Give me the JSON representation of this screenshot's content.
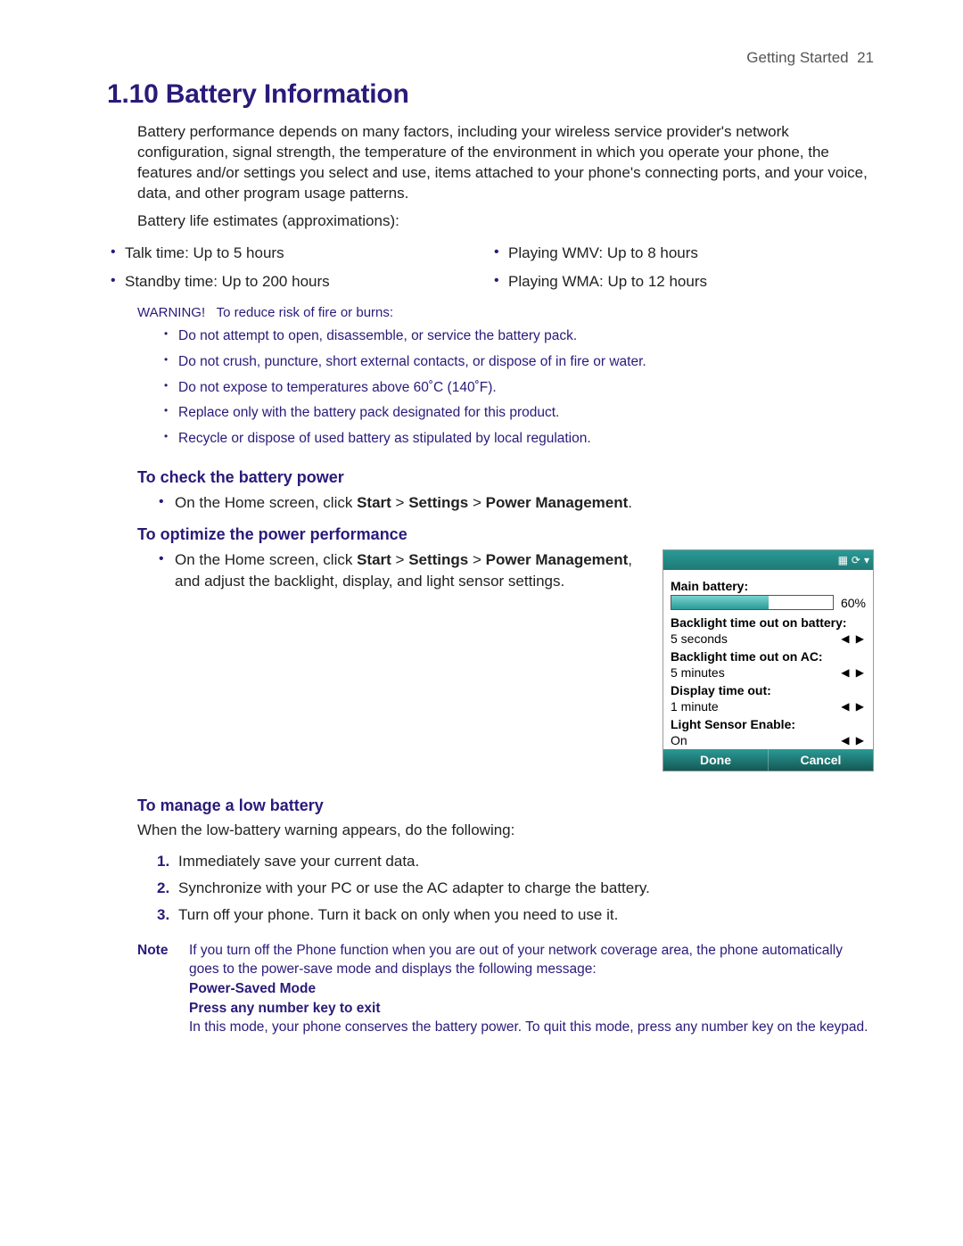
{
  "header": {
    "section": "Getting Started",
    "page_number": "21"
  },
  "title": {
    "number": "1.10",
    "text": "Battery Information"
  },
  "intro": "Battery performance depends on many factors, including your wireless service provider's network configuration, signal strength, the temperature of the environment in which you operate your phone, the features and/or settings you select and use, items attached to your phone's connecting ports, and your voice, data, and other program usage patterns.",
  "estimates_label": "Battery life estimates (approximations):",
  "estimates_left": [
    "Talk time: Up to 5 hours",
    "Standby time: Up to 200 hours"
  ],
  "estimates_right": [
    "Playing WMV: Up to 8 hours",
    "Playing WMA: Up to 12 hours"
  ],
  "warning": {
    "label": "WARNING!",
    "lead": "To reduce risk of fire or burns:",
    "items": [
      "Do not attempt to open, disassemble, or service the battery pack.",
      "Do not crush, puncture, short external contacts, or dispose of in fire or water.",
      "Do not expose to temperatures above 60˚C (140˚F).",
      "Replace only with the battery pack designated for this product.",
      "Recycle or dispose of used battery as stipulated by local regulation."
    ]
  },
  "check": {
    "heading": "To check the battery power",
    "prefix": "On the Home screen, click ",
    "path1": "Start",
    "sep": " > ",
    "path2": "Settings",
    "path3": "Power Management",
    "suffix": "."
  },
  "optimize": {
    "heading": "To optimize the power performance",
    "prefix": "On the Home screen, click ",
    "path1": "Start",
    "sep": " > ",
    "path2": "Settings",
    "path3": "Power Management",
    "tail": ", and adjust the backlight, display, and light sensor settings."
  },
  "phone": {
    "status_icons": [
      "▦",
      "⟳",
      "▾"
    ],
    "main_battery_label": "Main battery:",
    "battery_pct_label": "60%",
    "battery_pct": 60,
    "rows": [
      {
        "label": "Backlight time out on battery:",
        "value": "5 seconds"
      },
      {
        "label": "Backlight time out on AC:",
        "value": "5 minutes"
      },
      {
        "label": "Display time out:",
        "value": "1 minute"
      },
      {
        "label": "Light Sensor Enable:",
        "value": "On"
      }
    ],
    "arrow_glyph": "◀ ▶",
    "done": "Done",
    "cancel": "Cancel",
    "colors": {
      "bar_bg": "#ffffff",
      "bar_fill_top": "#7ad4d0",
      "bar_fill_bottom": "#2a9a96",
      "header_bg_top": "#2a9a96",
      "header_bg_bottom": "#145955"
    }
  },
  "manage": {
    "heading": "To manage a low battery",
    "lead": "When the low-battery warning appears, do the following:",
    "steps": [
      "Immediately save your current data.",
      "Synchronize with your PC or use the AC adapter to charge the battery.",
      "Turn off your phone. Turn it back on only when you need to use it."
    ]
  },
  "note": {
    "label": "Note",
    "line1": "If you turn off the Phone function when you are out of your network coverage area, the phone automatically goes to the power-save mode and displays the following message:",
    "bold1": "Power-Saved Mode",
    "bold2": "Press any number key to exit",
    "line2": "In this mode, your phone conserves the battery power. To quit this mode, press any number key on the keypad."
  },
  "colors": {
    "heading": "#2a1a7a",
    "body": "#222222",
    "note": "#2a1a7a"
  }
}
